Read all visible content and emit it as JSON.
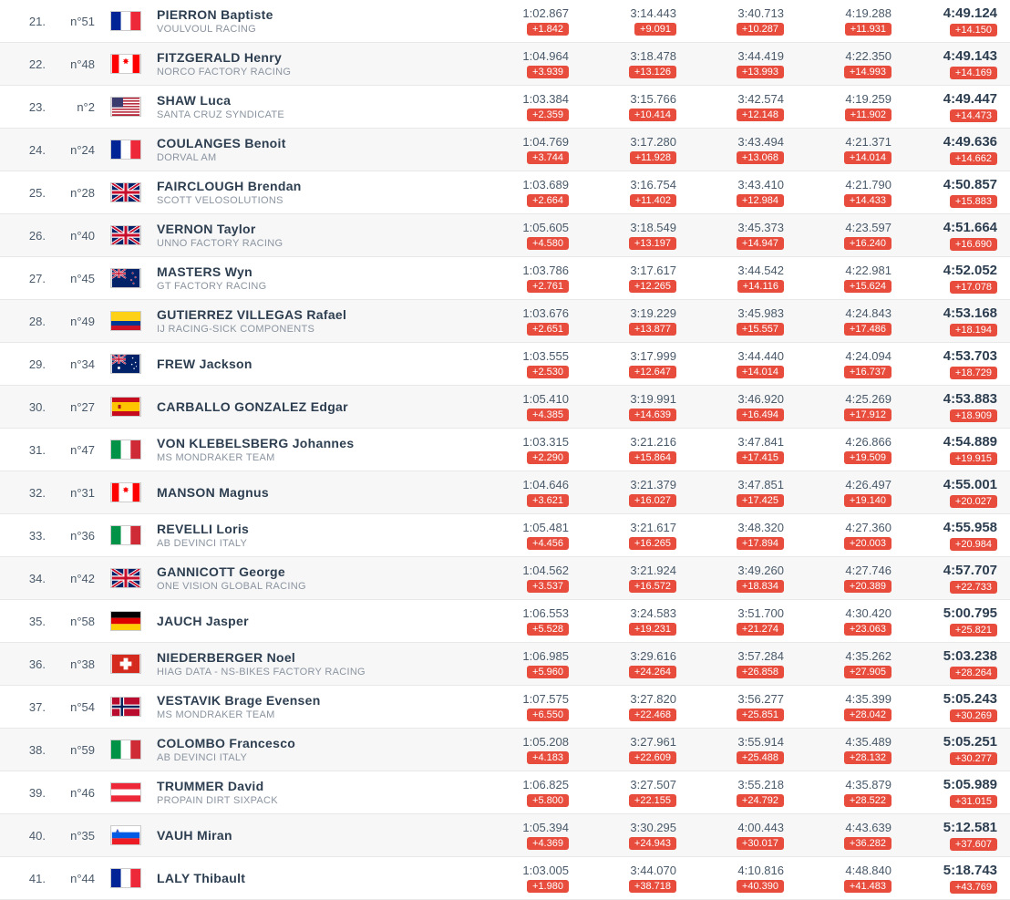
{
  "flags": {
    "FRA": [
      [
        "v",
        "#002395",
        "33.3"
      ],
      [
        "v",
        "#ffffff",
        "33.3"
      ],
      [
        "v",
        "#ed2939",
        "33.4"
      ]
    ],
    "CAN_MAPLE": "can",
    "USA": "usa",
    "GBR": "gbr",
    "NZL": "nzl",
    "COL": [
      [
        "h",
        "#fcd116",
        "50"
      ],
      [
        "h",
        "#003893",
        "25"
      ],
      [
        "h",
        "#ce1126",
        "25"
      ]
    ],
    "AUS": "aus",
    "ESP": "esp",
    "ITA": [
      [
        "v",
        "#009246",
        "33.3"
      ],
      [
        "v",
        "#ffffff",
        "33.3"
      ],
      [
        "v",
        "#ce2b37",
        "33.4"
      ]
    ],
    "GER": [
      [
        "h",
        "#000000",
        "33.3"
      ],
      [
        "h",
        "#dd0000",
        "33.3"
      ],
      [
        "h",
        "#ffce00",
        "33.4"
      ]
    ],
    "SUI": "sui",
    "NOR": "nor",
    "AUT": [
      [
        "h",
        "#ed2939",
        "33.3"
      ],
      [
        "h",
        "#ffffff",
        "33.3"
      ],
      [
        "h",
        "#ed2939",
        "33.4"
      ]
    ],
    "SLO": "slo"
  },
  "rows": [
    {
      "pos": "21.",
      "num": "n°51",
      "flag": "FRA",
      "name": "PIERRON Baptiste",
      "team": "VOULVOUL RACING",
      "splits": [
        [
          "1:02.867",
          "+1.842"
        ],
        [
          "3:14.443",
          "+9.091"
        ],
        [
          "3:40.713",
          "+10.287"
        ],
        [
          "4:19.288",
          "+11.931"
        ]
      ],
      "final": [
        "4:49.124",
        "+14.150"
      ]
    },
    {
      "pos": "22.",
      "num": "n°48",
      "flag": "CAN_MAPLE",
      "name": "FITZGERALD Henry",
      "team": "NORCO FACTORY RACING",
      "splits": [
        [
          "1:04.964",
          "+3.939"
        ],
        [
          "3:18.478",
          "+13.126"
        ],
        [
          "3:44.419",
          "+13.993"
        ],
        [
          "4:22.350",
          "+14.993"
        ]
      ],
      "final": [
        "4:49.143",
        "+14.169"
      ]
    },
    {
      "pos": "23.",
      "num": "n°2",
      "flag": "USA",
      "name": "SHAW Luca",
      "team": "SANTA CRUZ SYNDICATE",
      "splits": [
        [
          "1:03.384",
          "+2.359"
        ],
        [
          "3:15.766",
          "+10.414"
        ],
        [
          "3:42.574",
          "+12.148"
        ],
        [
          "4:19.259",
          "+11.902"
        ]
      ],
      "final": [
        "4:49.447",
        "+14.473"
      ]
    },
    {
      "pos": "24.",
      "num": "n°24",
      "flag": "FRA",
      "name": "COULANGES Benoit",
      "team": "DORVAL AM",
      "splits": [
        [
          "1:04.769",
          "+3.744"
        ],
        [
          "3:17.280",
          "+11.928"
        ],
        [
          "3:43.494",
          "+13.068"
        ],
        [
          "4:21.371",
          "+14.014"
        ]
      ],
      "final": [
        "4:49.636",
        "+14.662"
      ]
    },
    {
      "pos": "25.",
      "num": "n°28",
      "flag": "GBR",
      "name": "FAIRCLOUGH Brendan",
      "team": "SCOTT VELOSOLUTIONS",
      "splits": [
        [
          "1:03.689",
          "+2.664"
        ],
        [
          "3:16.754",
          "+11.402"
        ],
        [
          "3:43.410",
          "+12.984"
        ],
        [
          "4:21.790",
          "+14.433"
        ]
      ],
      "final": [
        "4:50.857",
        "+15.883"
      ]
    },
    {
      "pos": "26.",
      "num": "n°40",
      "flag": "GBR",
      "name": "VERNON Taylor",
      "team": "UNNO FACTORY RACING",
      "splits": [
        [
          "1:05.605",
          "+4.580"
        ],
        [
          "3:18.549",
          "+13.197"
        ],
        [
          "3:45.373",
          "+14.947"
        ],
        [
          "4:23.597",
          "+16.240"
        ]
      ],
      "final": [
        "4:51.664",
        "+16.690"
      ]
    },
    {
      "pos": "27.",
      "num": "n°45",
      "flag": "NZL",
      "name": "MASTERS Wyn",
      "team": "GT FACTORY RACING",
      "splits": [
        [
          "1:03.786",
          "+2.761"
        ],
        [
          "3:17.617",
          "+12.265"
        ],
        [
          "3:44.542",
          "+14.116"
        ],
        [
          "4:22.981",
          "+15.624"
        ]
      ],
      "final": [
        "4:52.052",
        "+17.078"
      ]
    },
    {
      "pos": "28.",
      "num": "n°49",
      "flag": "COL",
      "name": "GUTIERREZ VILLEGAS Rafael",
      "team": "IJ RACING-SICK COMPONENTS",
      "splits": [
        [
          "1:03.676",
          "+2.651"
        ],
        [
          "3:19.229",
          "+13.877"
        ],
        [
          "3:45.983",
          "+15.557"
        ],
        [
          "4:24.843",
          "+17.486"
        ]
      ],
      "final": [
        "4:53.168",
        "+18.194"
      ]
    },
    {
      "pos": "29.",
      "num": "n°34",
      "flag": "AUS",
      "name": "FREW Jackson",
      "team": "",
      "splits": [
        [
          "1:03.555",
          "+2.530"
        ],
        [
          "3:17.999",
          "+12.647"
        ],
        [
          "3:44.440",
          "+14.014"
        ],
        [
          "4:24.094",
          "+16.737"
        ]
      ],
      "final": [
        "4:53.703",
        "+18.729"
      ]
    },
    {
      "pos": "30.",
      "num": "n°27",
      "flag": "ESP",
      "name": "CARBALLO GONZALEZ Edgar",
      "team": "",
      "splits": [
        [
          "1:05.410",
          "+4.385"
        ],
        [
          "3:19.991",
          "+14.639"
        ],
        [
          "3:46.920",
          "+16.494"
        ],
        [
          "4:25.269",
          "+17.912"
        ]
      ],
      "final": [
        "4:53.883",
        "+18.909"
      ]
    },
    {
      "pos": "31.",
      "num": "n°47",
      "flag": "ITA",
      "name": "VON KLEBELSBERG Johannes",
      "team": "MS MONDRAKER TEAM",
      "splits": [
        [
          "1:03.315",
          "+2.290"
        ],
        [
          "3:21.216",
          "+15.864"
        ],
        [
          "3:47.841",
          "+17.415"
        ],
        [
          "4:26.866",
          "+19.509"
        ]
      ],
      "final": [
        "4:54.889",
        "+19.915"
      ]
    },
    {
      "pos": "32.",
      "num": "n°31",
      "flag": "CAN_MAPLE",
      "name": "MANSON Magnus",
      "team": "",
      "splits": [
        [
          "1:04.646",
          "+3.621"
        ],
        [
          "3:21.379",
          "+16.027"
        ],
        [
          "3:47.851",
          "+17.425"
        ],
        [
          "4:26.497",
          "+19.140"
        ]
      ],
      "final": [
        "4:55.001",
        "+20.027"
      ]
    },
    {
      "pos": "33.",
      "num": "n°36",
      "flag": "ITA",
      "name": "REVELLI Loris",
      "team": "AB DEVINCI ITALY",
      "splits": [
        [
          "1:05.481",
          "+4.456"
        ],
        [
          "3:21.617",
          "+16.265"
        ],
        [
          "3:48.320",
          "+17.894"
        ],
        [
          "4:27.360",
          "+20.003"
        ]
      ],
      "final": [
        "4:55.958",
        "+20.984"
      ]
    },
    {
      "pos": "34.",
      "num": "n°42",
      "flag": "GBR",
      "name": "GANNICOTT George",
      "team": "ONE VISION GLOBAL RACING",
      "splits": [
        [
          "1:04.562",
          "+3.537"
        ],
        [
          "3:21.924",
          "+16.572"
        ],
        [
          "3:49.260",
          "+18.834"
        ],
        [
          "4:27.746",
          "+20.389"
        ]
      ],
      "final": [
        "4:57.707",
        "+22.733"
      ]
    },
    {
      "pos": "35.",
      "num": "n°58",
      "flag": "GER",
      "name": "JAUCH Jasper",
      "team": "",
      "splits": [
        [
          "1:06.553",
          "+5.528"
        ],
        [
          "3:24.583",
          "+19.231"
        ],
        [
          "3:51.700",
          "+21.274"
        ],
        [
          "4:30.420",
          "+23.063"
        ]
      ],
      "final": [
        "5:00.795",
        "+25.821"
      ]
    },
    {
      "pos": "36.",
      "num": "n°38",
      "flag": "SUI",
      "name": "NIEDERBERGER Noel",
      "team": "HIAG DATA - NS-BIKES FACTORY RACING",
      "splits": [
        [
          "1:06.985",
          "+5.960"
        ],
        [
          "3:29.616",
          "+24.264"
        ],
        [
          "3:57.284",
          "+26.858"
        ],
        [
          "4:35.262",
          "+27.905"
        ]
      ],
      "final": [
        "5:03.238",
        "+28.264"
      ]
    },
    {
      "pos": "37.",
      "num": "n°54",
      "flag": "NOR",
      "name": "VESTAVIK Brage Evensen",
      "team": "MS MONDRAKER TEAM",
      "splits": [
        [
          "1:07.575",
          "+6.550"
        ],
        [
          "3:27.820",
          "+22.468"
        ],
        [
          "3:56.277",
          "+25.851"
        ],
        [
          "4:35.399",
          "+28.042"
        ]
      ],
      "final": [
        "5:05.243",
        "+30.269"
      ]
    },
    {
      "pos": "38.",
      "num": "n°59",
      "flag": "ITA",
      "name": "COLOMBO Francesco",
      "team": "AB DEVINCI ITALY",
      "splits": [
        [
          "1:05.208",
          "+4.183"
        ],
        [
          "3:27.961",
          "+22.609"
        ],
        [
          "3:55.914",
          "+25.488"
        ],
        [
          "4:35.489",
          "+28.132"
        ]
      ],
      "final": [
        "5:05.251",
        "+30.277"
      ]
    },
    {
      "pos": "39.",
      "num": "n°46",
      "flag": "AUT",
      "name": "TRUMMER David",
      "team": "PROPAIN DIRT SIXPACK",
      "splits": [
        [
          "1:06.825",
          "+5.800"
        ],
        [
          "3:27.507",
          "+22.155"
        ],
        [
          "3:55.218",
          "+24.792"
        ],
        [
          "4:35.879",
          "+28.522"
        ]
      ],
      "final": [
        "5:05.989",
        "+31.015"
      ]
    },
    {
      "pos": "40.",
      "num": "n°35",
      "flag": "SLO",
      "name": "VAUH Miran",
      "team": "",
      "splits": [
        [
          "1:05.394",
          "+4.369"
        ],
        [
          "3:30.295",
          "+24.943"
        ],
        [
          "4:00.443",
          "+30.017"
        ],
        [
          "4:43.639",
          "+36.282"
        ]
      ],
      "final": [
        "5:12.581",
        "+37.607"
      ]
    },
    {
      "pos": "41.",
      "num": "n°44",
      "flag": "FRA",
      "name": "LALY Thibault",
      "team": "",
      "splits": [
        [
          "1:03.005",
          "+1.980"
        ],
        [
          "3:44.070",
          "+38.718"
        ],
        [
          "4:10.816",
          "+40.390"
        ],
        [
          "4:48.840",
          "+41.483"
        ]
      ],
      "final": [
        "5:18.743",
        "+43.769"
      ]
    }
  ]
}
